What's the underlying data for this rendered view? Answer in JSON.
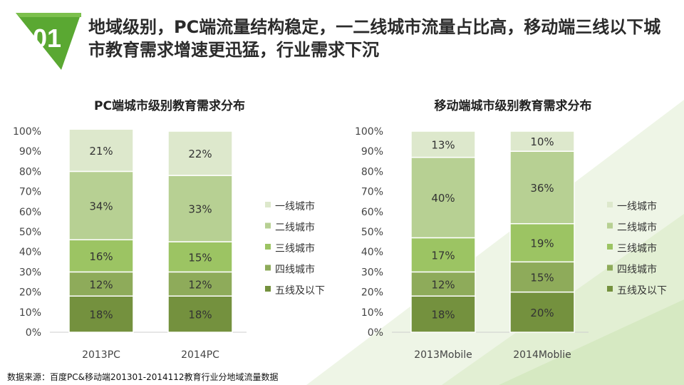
{
  "headline": "地域级别，PC端流量结构稳定，一二线城市流量占比高，移动端三线以下城市教育需求增速更迅猛，行业需求下沉",
  "badge_number": "01",
  "colors": {
    "accent": "#5aa832",
    "tier1": "#dde8cc",
    "tier2": "#b7d093",
    "tier3": "#9cc463",
    "tier4": "#8eab5a",
    "tier5": "#74913e"
  },
  "source_note": "数据来源：百度PC&移动端201301-2014112教育行业分地域流量数据",
  "chart_data": [
    {
      "type": "bar",
      "stacked": true,
      "title": "PC端城市级别教育需求分布",
      "categories": [
        "2013PC",
        "2014PC"
      ],
      "yticks": [
        "0%",
        "10%",
        "20%",
        "30%",
        "40%",
        "50%",
        "60%",
        "70%",
        "80%",
        "90%",
        "100%"
      ],
      "ylim": [
        0,
        100
      ],
      "series": [
        {
          "name": "五线及以下",
          "values": [
            18,
            18
          ]
        },
        {
          "name": "四线城市",
          "values": [
            12,
            12
          ]
        },
        {
          "name": "三线城市",
          "values": [
            16,
            15
          ]
        },
        {
          "name": "二线城市",
          "values": [
            34,
            33
          ]
        },
        {
          "name": "一线城市",
          "values": [
            21,
            22
          ]
        }
      ],
      "labels": [
        [
          "18%",
          "18%"
        ],
        [
          "12%",
          "12%"
        ],
        [
          "16%",
          "15%"
        ],
        [
          "34%",
          "33%"
        ],
        [
          "21%",
          "22%"
        ]
      ],
      "legend": [
        "一线城市",
        "二线城市",
        "三线城市",
        "四线城市",
        "五线及以下"
      ]
    },
    {
      "type": "bar",
      "stacked": true,
      "title": "移动端城市级别教育需求分布",
      "categories": [
        "2013Mobile",
        "2014Moblie"
      ],
      "yticks": [
        "0%",
        "10%",
        "20%",
        "30%",
        "40%",
        "50%",
        "60%",
        "70%",
        "80%",
        "90%",
        "100%"
      ],
      "ylim": [
        0,
        100
      ],
      "series": [
        {
          "name": "五线及以下",
          "values": [
            18,
            20
          ]
        },
        {
          "name": "四线城市",
          "values": [
            12,
            15
          ]
        },
        {
          "name": "三线城市",
          "values": [
            17,
            19
          ]
        },
        {
          "name": "二线城市",
          "values": [
            40,
            36
          ]
        },
        {
          "name": "一线城市",
          "values": [
            13,
            10
          ]
        }
      ],
      "labels": [
        [
          "18%",
          "20%"
        ],
        [
          "12%",
          "15%"
        ],
        [
          "17%",
          "19%"
        ],
        [
          "40%",
          "36%"
        ],
        [
          "13%",
          "10%"
        ]
      ],
      "legend": [
        "一线城市",
        "二线城市",
        "三线城市",
        "四线城市",
        "五线及以下"
      ]
    }
  ]
}
